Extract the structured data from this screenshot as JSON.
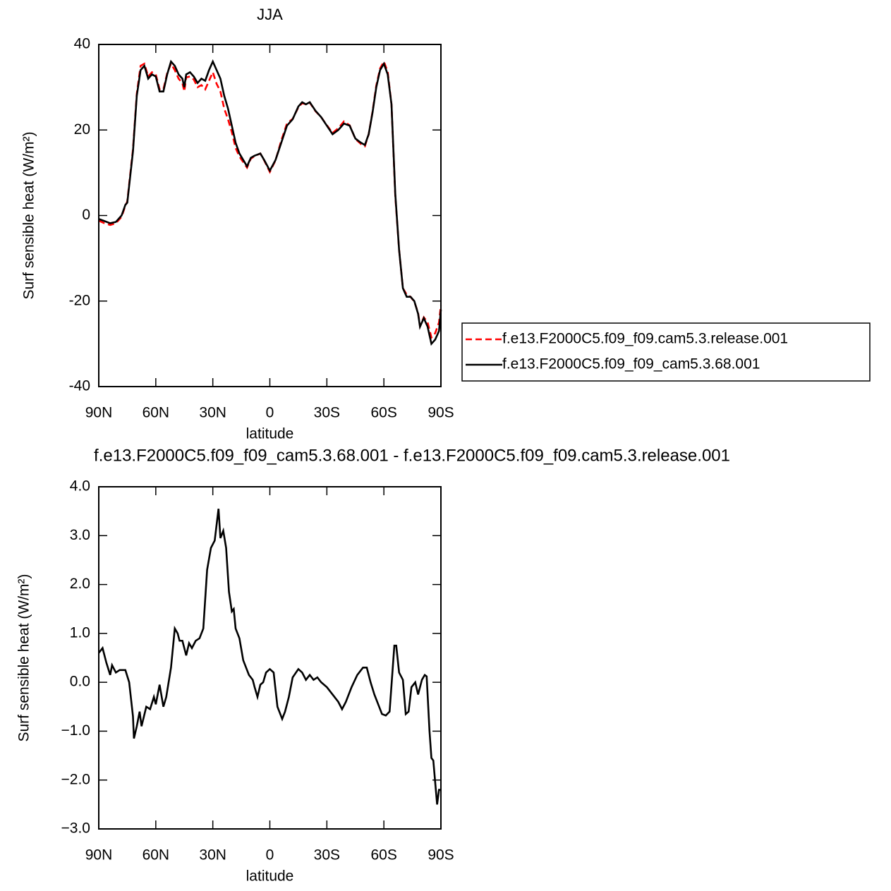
{
  "chart_data": [
    {
      "type": "line",
      "title": "JJA",
      "xlabel": "latitude",
      "ylabel": "Surf sensible heat (W/m²)",
      "xlim": [
        90,
        -90
      ],
      "xticks": [
        {
          "value": 90,
          "label": "90N"
        },
        {
          "value": 60,
          "label": "60N"
        },
        {
          "value": 30,
          "label": "30N"
        },
        0,
        {
          "value": -30,
          "label": "30S"
        },
        {
          "value": -60,
          "label": "60S"
        },
        {
          "value": -90,
          "label": "90S"
        }
      ],
      "ylim": [
        -40,
        40
      ],
      "yticks": [
        40,
        20,
        0,
        -20,
        -40
      ],
      "legend": "outside right",
      "x": [
        90,
        87,
        84,
        81,
        78,
        76,
        75,
        72,
        70,
        68,
        66,
        64,
        62,
        60,
        58,
        56,
        54,
        52,
        50,
        48,
        46,
        45,
        44,
        42,
        40,
        38,
        36,
        34,
        32,
        30,
        28,
        26,
        24,
        22,
        20,
        18,
        16,
        14,
        12,
        10,
        8,
        5,
        3,
        0,
        -3,
        -6,
        -9,
        -12,
        -15,
        -17,
        -19,
        -21,
        -24,
        -27,
        -30,
        -33,
        -36,
        -39,
        -42,
        -45,
        -48,
        -50,
        -52,
        -54,
        -56,
        -58,
        -60,
        -62,
        -64,
        -66,
        -68,
        -70,
        -72,
        -74,
        -76,
        -78,
        -79,
        -81,
        -83,
        -85,
        -87,
        -89,
        -90
      ],
      "series": [
        {
          "name": "f.e13.F2000C5.f09_f09.cam5.3.release.001",
          "color": "#ff0000",
          "dash": true,
          "values": [
            -1.2,
            -1.8,
            -2.2,
            -1.8,
            -0.3,
            2.3,
            3.3,
            15.5,
            28.5,
            35,
            35.5,
            32.5,
            33.5,
            33,
            29.5,
            29.5,
            33.3,
            35.5,
            34,
            32,
            31,
            29,
            32.3,
            32.5,
            31.8,
            30,
            30.5,
            29.5,
            31.5,
            33.5,
            30.8,
            29,
            25,
            22.5,
            19.5,
            15.8,
            13.8,
            12.5,
            11.2,
            13.3,
            13.9,
            14.5,
            12.9,
            10.2,
            12.9,
            17.5,
            21.5,
            22.6,
            25.3,
            26.3,
            26,
            26.4,
            24.4,
            23,
            21.1,
            19.3,
            20.4,
            22,
            21.1,
            17.9,
            16.7,
            16.2,
            19,
            24.2,
            30.4,
            34.4,
            36,
            33.6,
            26,
            4.5,
            -8,
            -17,
            -18.5,
            -19,
            -20.1,
            -22.8,
            -25.9,
            -23.8,
            -25,
            -28.5,
            -27.5,
            -25,
            -21
          ]
        },
        {
          "name": "f.e13.F2000C5.f09_f09_cam5.3.68.001",
          "color": "#000000",
          "dash": false,
          "values": [
            -0.8,
            -1.3,
            -1.8,
            -1.5,
            0,
            2.5,
            3,
            15,
            28,
            34,
            35,
            32,
            33,
            32.5,
            29,
            29,
            33,
            36,
            35,
            33,
            32,
            30,
            33,
            33.5,
            32.5,
            31,
            32,
            31.5,
            34,
            36,
            34,
            32,
            28,
            25,
            21,
            17,
            14.5,
            13,
            11.5,
            13.5,
            14,
            14.5,
            13,
            10.5,
            13,
            17,
            21,
            22.5,
            25.5,
            26.5,
            26,
            26.5,
            24.5,
            23,
            21,
            19,
            20,
            21.5,
            21,
            18,
            17,
            16.5,
            19,
            24,
            30,
            34,
            35.5,
            33,
            26,
            5,
            -8,
            -17,
            -19,
            -19,
            -20,
            -23,
            -26,
            -24,
            -26,
            -30,
            -29,
            -27,
            -22
          ]
        }
      ]
    },
    {
      "type": "line",
      "title": "f.e13.F2000C5.f09_f09_cam5.3.68.001 - f.e13.F2000C5.f09_f09.cam5.3.release.001",
      "xlabel": "latitude",
      "ylabel": "Surf sensible heat (W/m²)",
      "xlim": [
        90,
        -90
      ],
      "xticks": [
        {
          "value": 90,
          "label": "90N"
        },
        {
          "value": 60,
          "label": "60N"
        },
        {
          "value": 30,
          "label": "30N"
        },
        0,
        {
          "value": -30,
          "label": "30S"
        },
        {
          "value": -60,
          "label": "60S"
        },
        {
          "value": -90,
          "label": "90S"
        }
      ],
      "ylim": [
        -3,
        4
      ],
      "yticks": [
        {
          "value": 4,
          "label": "4.0"
        },
        {
          "value": 3,
          "label": "3.0"
        },
        {
          "value": 2,
          "label": "2.0"
        },
        {
          "value": 1,
          "label": "1.0"
        },
        {
          "value": 0,
          "label": "0.0"
        },
        {
          "value": -1,
          "label": "−1.0"
        },
        {
          "value": -2,
          "label": "−2.0"
        },
        {
          "value": -3,
          "label": "−3.0"
        }
      ],
      "color": "#000000",
      "x": [
        90,
        88,
        86,
        84,
        83,
        81,
        79,
        76,
        74,
        72,
        71.5,
        70,
        68.5,
        67.5,
        65,
        63,
        61,
        60,
        58,
        56,
        54.5,
        52,
        50,
        48.5,
        47.5,
        46,
        44,
        42.5,
        41,
        39,
        37,
        35,
        33,
        31,
        29,
        27,
        26,
        24.5,
        23,
        21.5,
        20,
        19,
        18,
        16,
        14,
        11,
        9,
        8,
        6.5,
        5,
        3.5,
        2,
        0,
        -2,
        -4,
        -6.5,
        -8,
        -10,
        -12,
        -15,
        -17,
        -19,
        -21,
        -23,
        -25,
        -27,
        -30,
        -33,
        -36,
        -38,
        -40,
        -43,
        -46,
        -49,
        -51,
        -53,
        -55,
        -57,
        -59,
        -61,
        -63,
        -65.5,
        -66.5,
        -68,
        -70,
        -71.5,
        -73,
        -74.5,
        -76.5,
        -78,
        -80,
        -81.5,
        -82.5,
        -84,
        -85,
        -86,
        -88,
        -89,
        -90
      ],
      "values": [
        0.6,
        0.7,
        0.4,
        0.15,
        0.35,
        0.2,
        0.25,
        0.25,
        0,
        -0.7,
        -1.15,
        -0.9,
        -0.6,
        -0.9,
        -0.5,
        -0.55,
        -0.3,
        -0.45,
        -0.05,
        -0.5,
        -0.3,
        0.3,
        1.1,
        1.0,
        0.85,
        0.85,
        0.55,
        0.8,
        0.7,
        0.85,
        0.9,
        1.1,
        2.3,
        2.75,
        2.9,
        3.55,
        2.95,
        3.1,
        2.75,
        1.85,
        1.45,
        1.5,
        1.1,
        0.9,
        0.45,
        0.15,
        0.05,
        -0.1,
        -0.3,
        -0.05,
        0,
        0.2,
        0.27,
        0.2,
        -0.5,
        -0.75,
        -0.6,
        -0.3,
        0.1,
        0.27,
        0.2,
        0.05,
        0.15,
        0.05,
        0.1,
        0,
        -0.1,
        -0.25,
        -0.4,
        -0.55,
        -0.4,
        -0.1,
        0.15,
        0.3,
        0.3,
        0,
        -0.25,
        -0.45,
        -0.65,
        -0.68,
        -0.6,
        0.75,
        0.75,
        0.2,
        0.05,
        -0.65,
        -0.6,
        -0.1,
        0,
        -0.25,
        0.05,
        0.15,
        0.12,
        -1.0,
        -1.55,
        -1.6,
        -2.5,
        -2.2,
        -2.2
      ]
    }
  ]
}
